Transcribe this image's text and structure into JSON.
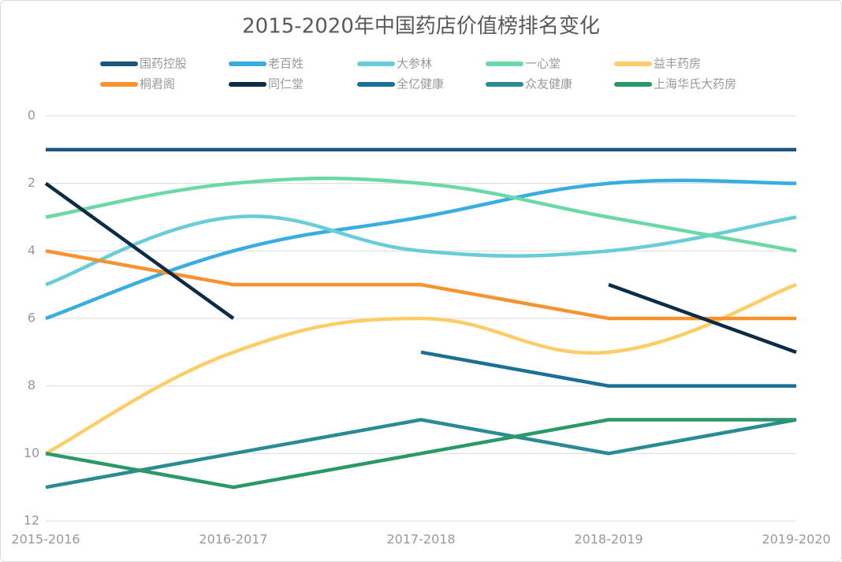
{
  "chart_data": {
    "type": "line",
    "title": "2015-2020年中国药店价值榜排名变化",
    "categories": [
      "2015-2016",
      "2016-2017",
      "2017-2018",
      "2018-2019",
      "2019-2020"
    ],
    "ylim": [
      0,
      12
    ],
    "yticks": [
      0,
      2,
      4,
      6,
      8,
      10,
      12
    ],
    "y_inverted": true,
    "grid": true,
    "legend": "top",
    "series": [
      {
        "name": "国药控股",
        "color": "#1b5580",
        "smooth": false,
        "values": [
          1,
          1,
          1,
          1,
          1
        ]
      },
      {
        "name": "老百姓",
        "color": "#39ade1",
        "smooth": true,
        "values": [
          6,
          4,
          3,
          2,
          2
        ]
      },
      {
        "name": "大参林",
        "color": "#68cdd6",
        "smooth": true,
        "values": [
          5,
          3,
          4,
          4,
          3
        ]
      },
      {
        "name": "一心堂",
        "color": "#6bd8a7",
        "smooth": true,
        "values": [
          3,
          2,
          2,
          3,
          4
        ]
      },
      {
        "name": "益丰药房",
        "color": "#fdcd68",
        "smooth": true,
        "values": [
          10,
          7,
          6,
          7,
          5
        ]
      },
      {
        "name": "桐君阁",
        "color": "#f7932f",
        "smooth": false,
        "values": [
          4,
          5,
          5,
          6,
          6
        ]
      },
      {
        "name": "同仁堂",
        "color": "#0c2c45",
        "smooth": false,
        "values": [
          2,
          6,
          null,
          5,
          7
        ]
      },
      {
        "name": "全亿健康",
        "color": "#1b7096",
        "smooth": false,
        "values": [
          null,
          null,
          7,
          8,
          8
        ]
      },
      {
        "name": "众友健康",
        "color": "#2a8c92",
        "smooth": false,
        "values": [
          11,
          10,
          9,
          10,
          9
        ]
      },
      {
        "name": "上海华氏大药房",
        "color": "#2b9967",
        "smooth": false,
        "values": [
          10,
          11,
          10,
          9,
          9
        ]
      }
    ]
  }
}
